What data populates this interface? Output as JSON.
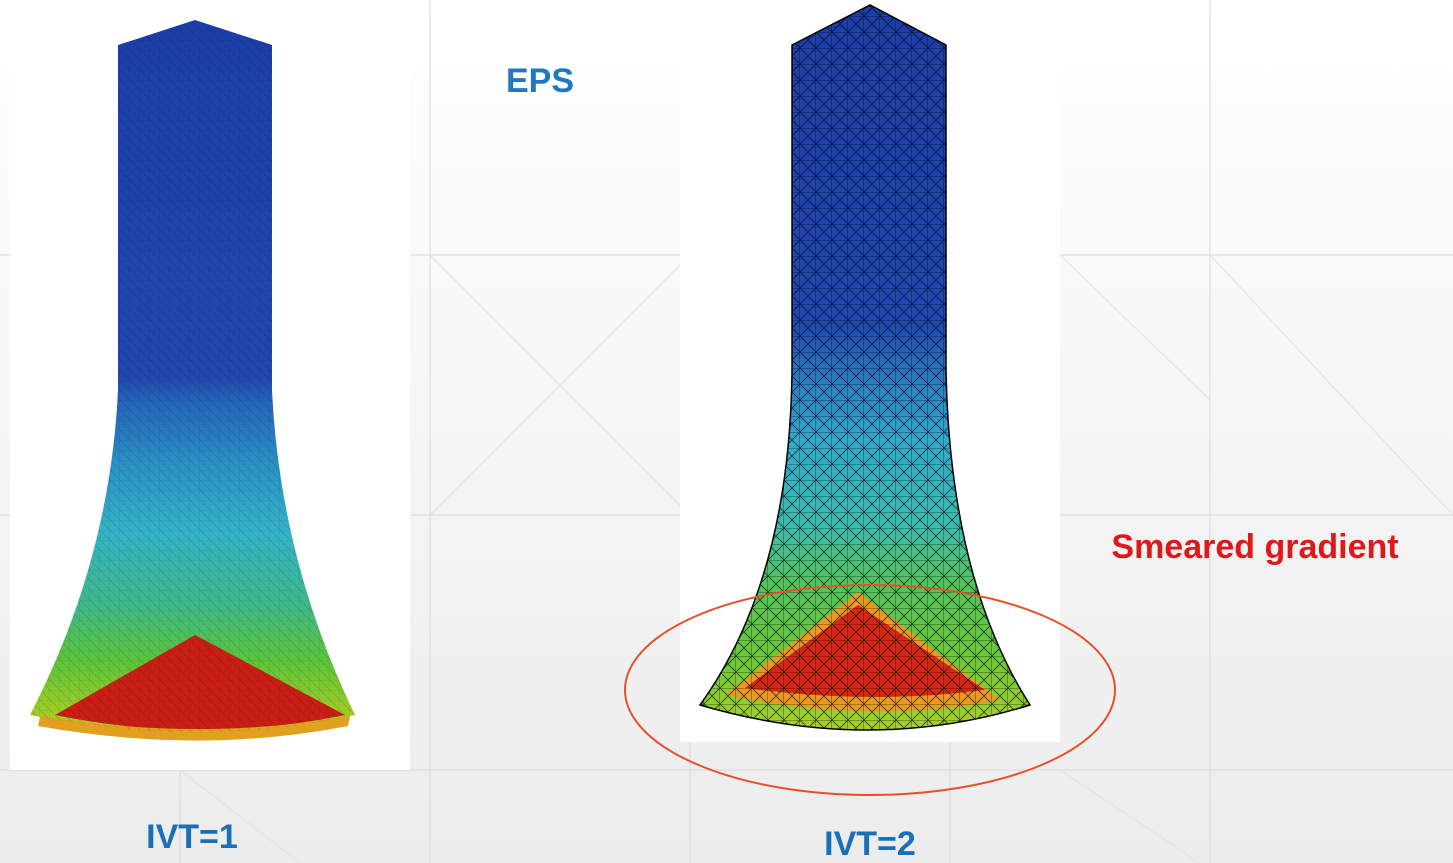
{
  "slide": {
    "legend_label": "EPS",
    "left_caption": "IVT=1",
    "right_caption": "IVT=2",
    "annotation": "Smeared gradient"
  }
}
